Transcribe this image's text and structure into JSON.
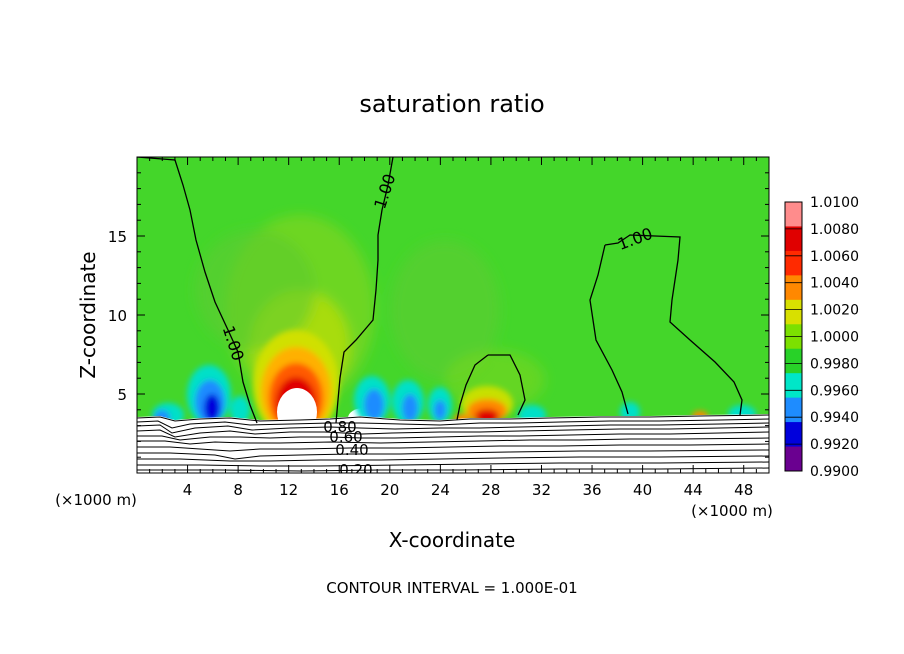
{
  "chart_data": {
    "type": "heatmap",
    "title": "saturation ratio",
    "xlabel": "X-coordinate",
    "ylabel": "Z-coordinate",
    "x_unit": "(×1000 m)",
    "y_unit": "(×1000 m)",
    "xlim": [
      0,
      50
    ],
    "ylim": [
      0,
      20
    ],
    "x_ticks": [
      4,
      8,
      12,
      16,
      20,
      24,
      28,
      32,
      36,
      40,
      44,
      48
    ],
    "y_ticks": [
      5,
      10,
      15
    ],
    "colorbar": {
      "levels": [
        1.01,
        1.008,
        1.006,
        1.004,
        1.002,
        1.0,
        0.998,
        0.996,
        0.994,
        0.992,
        0.99
      ],
      "labels": [
        "1.0100",
        "1.0080",
        "1.0060",
        "1.0040",
        "1.0020",
        "1.0000",
        "0.9980",
        "0.9960",
        "0.9940",
        "0.9920",
        "0.9900"
      ],
      "colors": [
        "#ff8c8c",
        "#e00000",
        "#ff2a00",
        "#ff8800",
        "#d8e000",
        "#7ce000",
        "#28d228",
        "#00e6c8",
        "#1e8cff",
        "#0000dc",
        "#6a0090"
      ]
    },
    "background_color": "#44d62a",
    "contour_labels": [
      {
        "text": "1.00",
        "x": 2.5,
        "z": 16.5
      },
      {
        "text": "1.00",
        "x": 39.5,
        "z": 15.0
      },
      {
        "text": "1.00",
        "x": 7.0,
        "z": 8.2
      },
      {
        "text": "0.80",
        "x": 16.0,
        "z": 2.7
      },
      {
        "text": "0.60",
        "x": 16.5,
        "z": 2.2
      },
      {
        "text": "0.40",
        "x": 16.5,
        "z": 1.3
      },
      {
        "text": "0.20",
        "x": 16.5,
        "z": 0.1
      }
    ],
    "contour_interval_text": "CONTOUR INTERVAL = 1.000E-01"
  }
}
